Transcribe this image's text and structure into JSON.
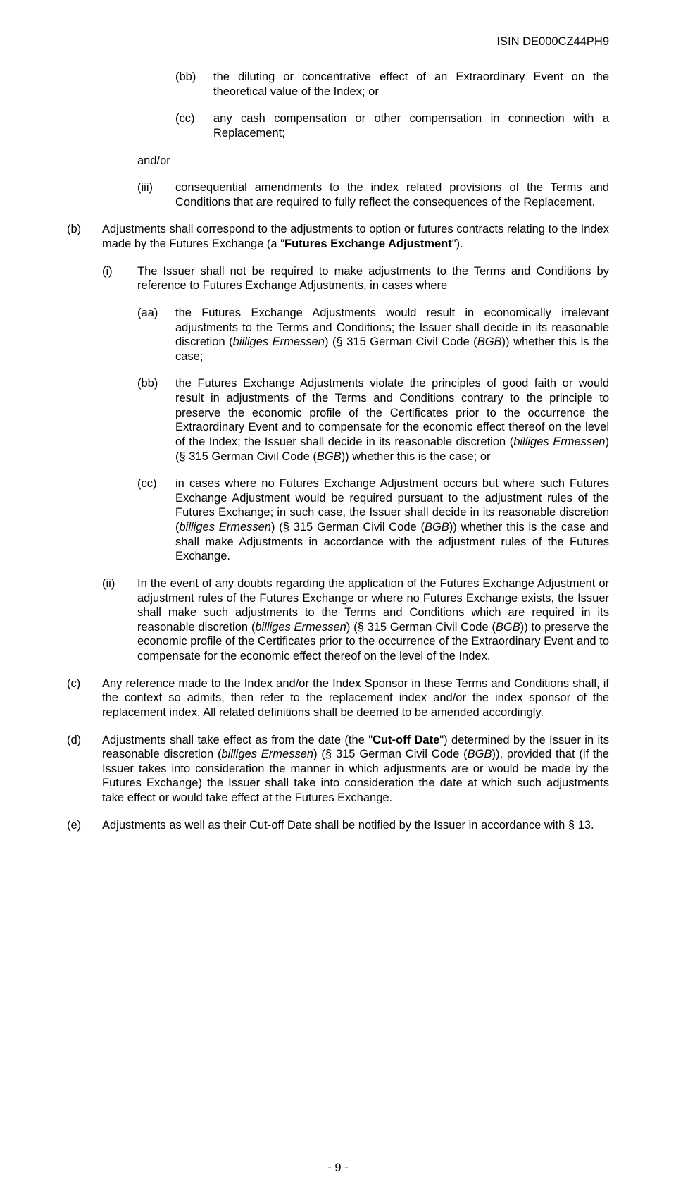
{
  "header": {
    "isin": "ISIN DE000CZ44PH9"
  },
  "items": {
    "bb1": {
      "label": "(bb)",
      "text": "the diluting or concentrative effect of an Extraordinary Event on the theoretical value of the Index; or"
    },
    "cc1": {
      "label": "(cc)",
      "text": "any cash compensation or other compensation in connection with a Replacement;"
    },
    "andor": {
      "text": "and/or"
    },
    "iii": {
      "label": "(iii)",
      "text": "consequential amendments to the index related provisions of the Terms and Conditions that are required to fully reflect the consequences of the Replacement."
    },
    "b": {
      "label": "(b)",
      "text_pre": "Adjustments shall correspond to the adjustments to option or futures contracts relating to the Index made by the Futures Exchange (a \"",
      "bold": "Futures Exchange Adjustment",
      "text_post": "\")."
    },
    "bi": {
      "label": "(i)",
      "text": "The Issuer shall not be required to make adjustments to the Terms and Conditions by reference to Futures Exchange Adjustments, in cases where"
    },
    "aa2": {
      "label": "(aa)",
      "text_pre": "the Futures Exchange Adjustments would result in economically irrelevant adjustments to the Terms and Conditions; the Issuer shall decide in its reasonable discretion (",
      "it1": "billiges Ermessen",
      "mid": ") (§ 315 German Civil Code (",
      "it2": "BGB",
      "text_post": ")) whether this is the case;"
    },
    "bb2": {
      "label": "(bb)",
      "text_pre": "the Futures Exchange Adjustments violate the principles of good faith or would result in adjustments of the Terms and Conditions contrary to the principle to preserve the economic profile of the Certificates prior to the occurrence the Extraordinary Event and to compensate for the economic effect thereof on the level of the Index; the Issuer shall decide in its reasonable discretion (",
      "it1": "billiges Ermessen",
      "mid": ") (§ 315 German Civil Code (",
      "it2": "BGB",
      "text_post": ")) whether this is the case; or"
    },
    "cc2": {
      "label": "(cc)",
      "text_pre": "in cases where no Futures Exchange Adjustment occurs but where such Futures Exchange Adjustment would be required pursuant to the adjustment rules of the Futures Exchange; in such case, the Issuer shall decide in its reasonable discretion (",
      "it1": "billiges Ermessen",
      "mid": ") (§ 315 German Civil Code (",
      "it2": "BGB",
      "text_post": ")) whether this is the case and shall make Adjustments in accordance with the adjustment rules of the Futures Exchange."
    },
    "bii": {
      "label": "(ii)",
      "text_pre": "In the event of any doubts regarding the application of the Futures Exchange Adjustment or adjustment rules of the Futures Exchange or where no Futures Exchange exists, the Issuer shall make such adjustments to the Terms and Conditions which are required in its reasonable discretion (",
      "it1": "billiges Ermessen",
      "mid": ") (§ 315 German Civil Code (",
      "it2": "BGB",
      "text_post": ")) to preserve the economic profile of the Certificates prior to the occurrence of the Extraordinary Event and to compensate for the economic effect thereof on the level of the Index."
    },
    "c": {
      "label": "(c)",
      "text": "Any reference made to the Index and/or the Index Sponsor in these Terms and Conditions shall, if the context so admits, then refer to the replacement index and/or the index sponsor of the replacement index. All related definitions shall be deemed to be amended accordingly."
    },
    "d": {
      "label": "(d)",
      "text_pre": "Adjustments shall take effect as from the date (the \"",
      "bold": "Cut-off Date",
      "mid1": "\") determined by the Issuer in its reasonable discretion (",
      "it1": "billiges Ermessen",
      "mid2": ") (§ 315 German Civil Code (",
      "it2": "BGB",
      "text_post": ")), provided that (if the Issuer takes into consideration the manner in which adjustments are or would be made by the Futures Exchange) the Issuer shall take into consideration the date at which such adjustments take effect or would take effect at the Futures Exchange."
    },
    "e": {
      "label": "(e)",
      "text": "Adjustments as well as their Cut-off Date shall be notified by the Issuer in accordance with § 13."
    }
  },
  "footer": {
    "page": "- 9 -"
  }
}
